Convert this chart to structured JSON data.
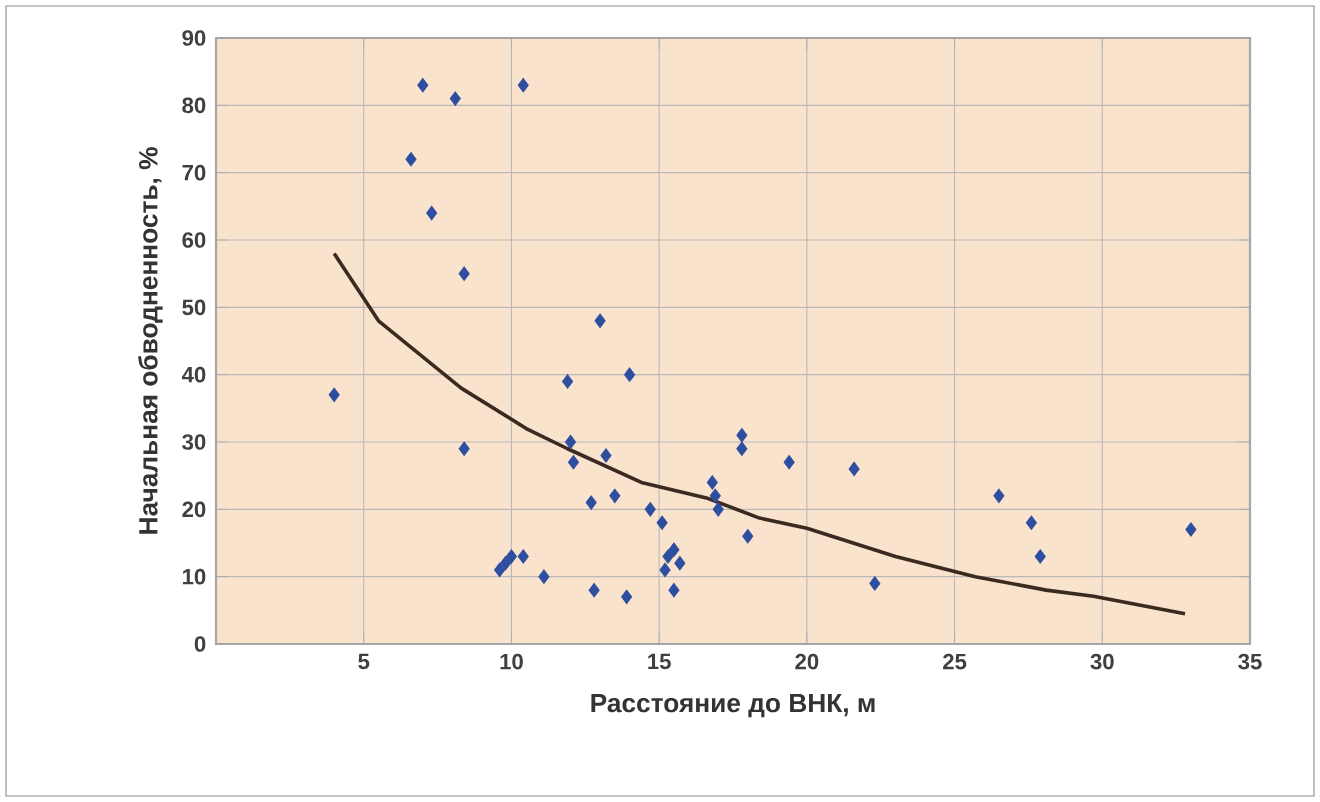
{
  "chart_data": {
    "type": "scatter",
    "xlabel": "Расстояние до ВНК, м",
    "ylabel": "Начальная обводненность, %",
    "xlim": [
      0,
      35
    ],
    "ylim": [
      0,
      90
    ],
    "xticks": [
      5,
      10,
      15,
      20,
      25,
      30,
      35
    ],
    "yticks": [
      0,
      10,
      20,
      30,
      40,
      50,
      60,
      70,
      80,
      90
    ],
    "grid": true,
    "series": [
      {
        "marker": "diamond",
        "color": "#2e4fa0",
        "x": [
          4,
          6.6,
          7,
          7.3,
          8.1,
          8.4,
          8.4,
          10.4,
          9.6,
          9.8,
          10,
          10.4,
          11.1,
          11.9,
          12,
          12.1,
          12.7,
          12.8,
          13,
          13.2,
          13.5,
          13.9,
          14,
          14.7,
          15.1,
          15.2,
          15.3,
          15.5,
          15.5,
          15.7,
          16.8,
          16.9,
          17,
          17.8,
          17.8,
          18,
          19.4,
          21.6,
          22.3,
          26.5,
          27.6,
          27.9,
          33
        ],
        "values": [
          37,
          72,
          83,
          64,
          81,
          55,
          29,
          83,
          11,
          12,
          13,
          13,
          10,
          39,
          30,
          27,
          21,
          8,
          48,
          28,
          22,
          7,
          40,
          20,
          18,
          11,
          13,
          14,
          8,
          12,
          24,
          22,
          20,
          31,
          29,
          16,
          27,
          26,
          9,
          22,
          18,
          13,
          17
        ]
      },
      {
        "type": "line",
        "marker": "none",
        "color": "#3a2a20",
        "x": [
          4,
          5.5,
          8.3,
          10.5,
          11.9,
          14.4,
          16.6,
          18.4,
          20,
          23,
          25.7,
          28.1,
          29.7,
          32.8
        ],
        "values": [
          58,
          48,
          38,
          32,
          29,
          24,
          21.7,
          18.7,
          17.2,
          13,
          10,
          8,
          7.1,
          4.5
        ]
      }
    ]
  }
}
